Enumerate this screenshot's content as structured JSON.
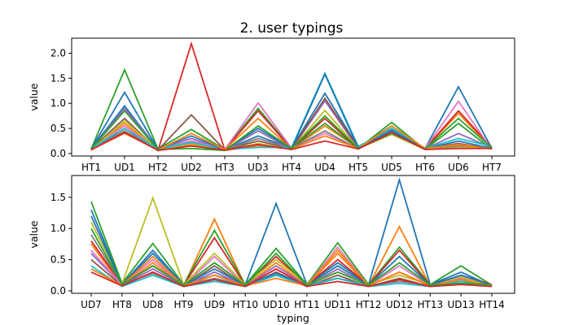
{
  "figure": {
    "title": "2. user typings"
  },
  "colors": [
    "#1f77b4",
    "#ff7f0e",
    "#2ca02c",
    "#d62728",
    "#9467bd",
    "#8c564b",
    "#e377c2",
    "#7f7f7f",
    "#bcbd22",
    "#17becf"
  ],
  "chart_data": [
    {
      "type": "line",
      "title": "2. user typings",
      "xlabel": "",
      "ylabel": "value",
      "ylim": [
        -0.05,
        2.3
      ],
      "yticks": [
        0.0,
        0.5,
        1.0,
        1.5,
        2.0
      ],
      "ytick_labels": [
        "0.0",
        "0.5",
        "1.0",
        "1.5",
        "2.0"
      ],
      "grid": false,
      "categories": [
        "HT1",
        "UD1",
        "HT2",
        "UD2",
        "HT3",
        "UD3",
        "HT4",
        "UD4",
        "HT5",
        "UD5",
        "HT6",
        "UD6",
        "HT7"
      ],
      "series": [
        {
          "values": [
            0.1,
            0.95,
            0.08,
            0.2,
            0.07,
            0.35,
            0.1,
            1.2,
            0.12,
            0.55,
            0.1,
            1.33,
            0.1
          ]
        },
        {
          "values": [
            0.08,
            0.6,
            0.07,
            0.18,
            0.06,
            0.15,
            0.09,
            0.55,
            0.11,
            0.45,
            0.09,
            0.8,
            0.1
          ]
        },
        {
          "values": [
            0.09,
            1.67,
            0.09,
            0.48,
            0.08,
            0.9,
            0.1,
            0.6,
            0.1,
            0.62,
            0.08,
            0.6,
            0.08
          ]
        },
        {
          "values": [
            0.07,
            0.5,
            0.06,
            2.19,
            0.07,
            0.85,
            0.09,
            0.7,
            0.09,
            0.5,
            0.1,
            0.85,
            0.12
          ]
        },
        {
          "values": [
            0.08,
            0.9,
            0.08,
            0.3,
            0.06,
            0.45,
            0.08,
            1.05,
            0.1,
            0.48,
            0.09,
            0.4,
            0.11
          ]
        },
        {
          "values": [
            0.09,
            0.7,
            0.07,
            0.77,
            0.07,
            0.25,
            0.09,
            1.1,
            0.12,
            0.42,
            0.1,
            0.2,
            0.09
          ]
        },
        {
          "values": [
            0.1,
            0.55,
            0.08,
            0.25,
            0.08,
            1.01,
            0.11,
            0.4,
            0.1,
            0.4,
            0.1,
            1.04,
            0.08
          ]
        },
        {
          "values": [
            0.08,
            0.45,
            0.07,
            0.15,
            0.07,
            0.3,
            0.1,
            0.45,
            0.09,
            0.44,
            0.09,
            0.15,
            0.1
          ]
        },
        {
          "values": [
            0.07,
            0.65,
            0.08,
            0.2,
            0.06,
            0.2,
            0.08,
            0.86,
            0.1,
            0.38,
            0.08,
            0.12,
            0.12
          ]
        },
        {
          "values": [
            0.1,
            0.5,
            0.09,
            0.22,
            0.08,
            0.12,
            0.12,
            1.6,
            0.14,
            0.5,
            0.1,
            0.3,
            0.14
          ]
        },
        {
          "values": [
            0.09,
            1.22,
            0.08,
            0.35,
            0.07,
            0.5,
            0.09,
            1.58,
            0.11,
            0.46,
            0.09,
            0.25,
            0.1
          ]
        },
        {
          "values": [
            0.08,
            0.4,
            0.07,
            0.4,
            0.08,
            0.7,
            0.09,
            0.35,
            0.1,
            0.55,
            0.1,
            0.18,
            0.09
          ]
        },
        {
          "values": [
            0.09,
            0.85,
            0.08,
            0.1,
            0.06,
            0.55,
            0.1,
            0.75,
            0.1,
            0.4,
            0.09,
            0.7,
            0.11
          ]
        },
        {
          "values": [
            0.07,
            0.42,
            0.06,
            0.15,
            0.07,
            0.18,
            0.08,
            0.25,
            0.09,
            0.42,
            0.08,
            0.1,
            0.1
          ]
        }
      ]
    },
    {
      "type": "line",
      "title": "",
      "xlabel": "typing",
      "ylabel": "value",
      "ylim": [
        -0.04,
        1.85
      ],
      "yticks": [
        0.0,
        0.5,
        1.0,
        1.5
      ],
      "ytick_labels": [
        "0.0",
        "0.5",
        "1.0",
        "1.5"
      ],
      "grid": false,
      "categories": [
        "UD7",
        "HT8",
        "UD8",
        "HT9",
        "UD9",
        "HT10",
        "UD10",
        "HT11",
        "UD11",
        "HT12",
        "UD12",
        "HT13",
        "UD13",
        "HT14"
      ],
      "series": [
        {
          "values": [
            1.3,
            0.1,
            0.6,
            0.1,
            0.25,
            0.1,
            1.4,
            0.1,
            0.45,
            0.1,
            1.78,
            0.1,
            0.3,
            0.08
          ]
        },
        {
          "values": [
            0.75,
            0.08,
            0.45,
            0.08,
            1.15,
            0.08,
            0.45,
            0.08,
            0.6,
            0.08,
            1.03,
            0.08,
            0.2,
            0.07
          ]
        },
        {
          "values": [
            1.43,
            0.12,
            0.76,
            0.1,
            0.97,
            0.1,
            0.68,
            0.1,
            0.77,
            0.1,
            0.7,
            0.1,
            0.4,
            0.09
          ]
        },
        {
          "values": [
            0.8,
            0.1,
            0.4,
            0.09,
            0.85,
            0.09,
            0.55,
            0.09,
            0.5,
            0.09,
            0.65,
            0.09,
            0.25,
            0.1
          ]
        },
        {
          "values": [
            0.6,
            0.09,
            0.35,
            0.08,
            0.3,
            0.08,
            0.4,
            0.08,
            0.35,
            0.08,
            0.3,
            0.08,
            0.18,
            0.08
          ]
        },
        {
          "values": [
            0.5,
            0.08,
            0.3,
            0.07,
            0.4,
            0.07,
            0.3,
            0.07,
            0.25,
            0.07,
            0.2,
            0.07,
            0.15,
            0.08
          ]
        },
        {
          "values": [
            0.65,
            0.09,
            0.5,
            0.08,
            0.55,
            0.08,
            0.35,
            0.08,
            0.7,
            0.08,
            0.4,
            0.08,
            0.2,
            0.09
          ]
        },
        {
          "values": [
            0.9,
            0.1,
            0.28,
            0.09,
            0.2,
            0.09,
            0.25,
            0.09,
            0.2,
            0.09,
            0.15,
            0.09,
            0.12,
            0.1
          ]
        },
        {
          "values": [
            1.1,
            0.11,
            1.49,
            0.1,
            0.6,
            0.1,
            0.5,
            0.1,
            0.3,
            0.1,
            0.25,
            0.1,
            0.22,
            0.08
          ]
        },
        {
          "values": [
            0.4,
            0.07,
            0.25,
            0.07,
            0.15,
            0.07,
            0.25,
            0.07,
            0.2,
            0.07,
            0.12,
            0.07,
            0.15,
            0.07
          ]
        },
        {
          "values": [
            1.2,
            0.1,
            0.65,
            0.09,
            0.35,
            0.09,
            0.28,
            0.09,
            0.4,
            0.09,
            0.55,
            0.09,
            0.25,
            0.09
          ]
        },
        {
          "values": [
            0.35,
            0.09,
            0.55,
            0.08,
            0.25,
            0.08,
            0.2,
            0.08,
            0.65,
            0.08,
            0.3,
            0.08,
            0.18,
            0.08
          ]
        },
        {
          "values": [
            1.0,
            0.1,
            0.4,
            0.09,
            0.45,
            0.09,
            0.6,
            0.09,
            0.3,
            0.09,
            0.45,
            0.09,
            0.12,
            0.1
          ]
        },
        {
          "values": [
            0.3,
            0.08,
            0.3,
            0.07,
            0.18,
            0.07,
            0.35,
            0.07,
            0.15,
            0.07,
            0.18,
            0.07,
            0.1,
            0.07
          ]
        }
      ]
    }
  ]
}
